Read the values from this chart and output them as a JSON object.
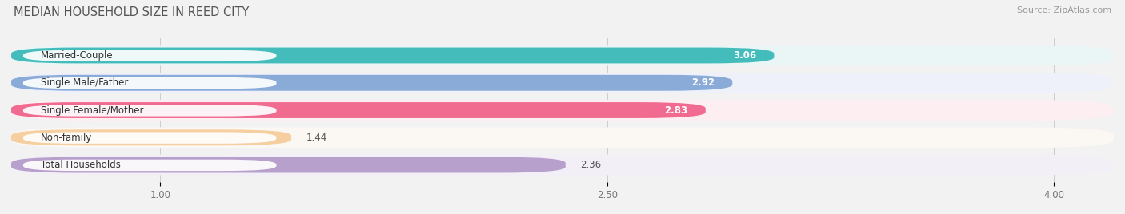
{
  "title": "MEDIAN HOUSEHOLD SIZE IN REED CITY",
  "source": "Source: ZipAtlas.com",
  "categories": [
    "Married-Couple",
    "Single Male/Father",
    "Single Female/Mother",
    "Non-family",
    "Total Households"
  ],
  "values": [
    3.06,
    2.92,
    2.83,
    1.44,
    2.36
  ],
  "bar_colors": [
    "#45BCBC",
    "#8AAAD8",
    "#F06B8F",
    "#F5CFA0",
    "#B8A0CC"
  ],
  "bar_bg_colors": [
    "#EAF6F6",
    "#EEF1F9",
    "#FDEEF2",
    "#FBF7F2",
    "#F3EFF7"
  ],
  "xlim_min": 0.5,
  "xlim_max": 4.2,
  "data_min": 0.5,
  "xticks": [
    1.0,
    2.5,
    4.0
  ],
  "title_fontsize": 10.5,
  "label_fontsize": 8.5,
  "value_fontsize": 8.5,
  "source_fontsize": 8,
  "value_inside_color": "white",
  "value_outside_color": "#555555",
  "value_inside_threshold": 2.5
}
